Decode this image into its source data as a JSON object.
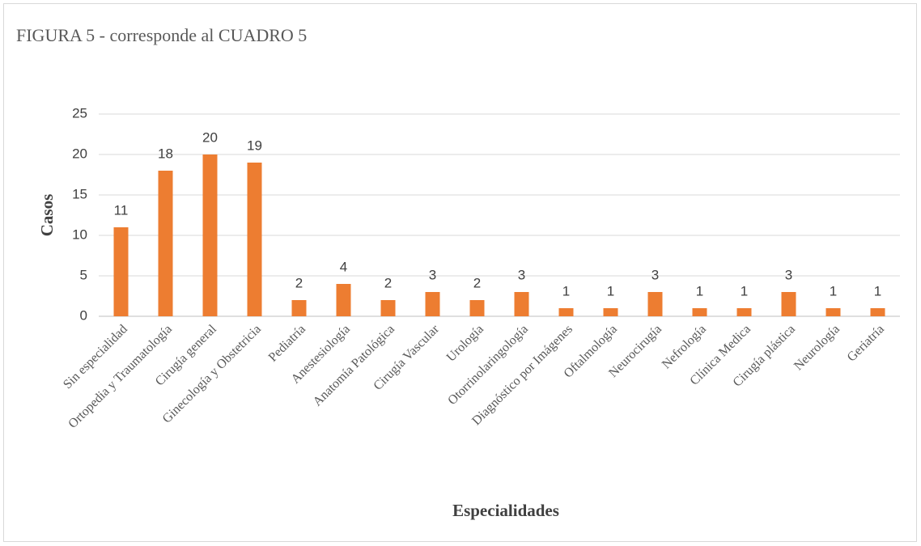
{
  "chart_data": {
    "type": "bar",
    "title": "FIGURA 5 - corresponde al CUADRO 5",
    "x_label": "Especialidades",
    "y_label": "Casos",
    "categories": [
      "Sin especialidad",
      "Ortopedia y Traumatología",
      "Cirugía general",
      "Ginecología y Obstetricia",
      "Pediatría",
      "Anestesiología",
      "Anatomía Patológica",
      "Cirugía Vascular",
      "Urología",
      "Otorrinolaringología",
      "Diagnóstico por Imágenes",
      "Oftalmología",
      "Neurocirugía",
      "Nefrología",
      "Clínica Medica",
      "Cirugía plástica",
      "Neurología",
      "Geriatría"
    ],
    "values": [
      11,
      18,
      20,
      19,
      2,
      4,
      2,
      3,
      2,
      3,
      1,
      1,
      3,
      1,
      1,
      3,
      1,
      1
    ],
    "color": "#ed7d31",
    "ylim": [
      0,
      25
    ],
    "yticks": [
      0,
      5,
      10,
      15,
      20,
      25
    ],
    "grid": true
  }
}
